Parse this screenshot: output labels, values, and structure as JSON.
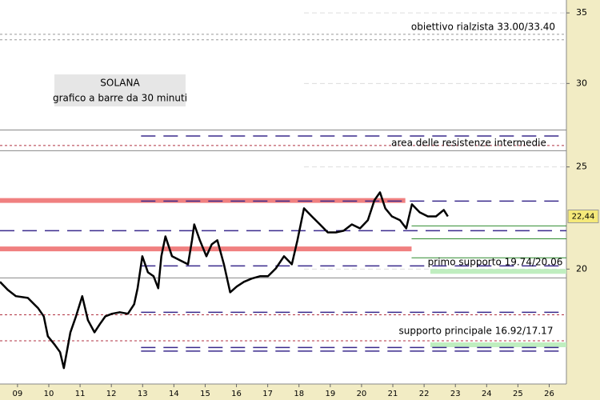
{
  "chart_data": {
    "type": "line",
    "title": "SOLANA",
    "subtitle": "grafico a barre da 30 minuti",
    "log_scale": true,
    "grid": true,
    "color": "#000000",
    "xlim": [
      8.44,
      26.55
    ],
    "xticks": [
      {
        "value": 9,
        "label": "09"
      },
      10,
      11,
      12,
      13,
      14,
      15,
      16,
      17,
      18,
      19,
      20,
      21,
      22,
      23,
      24,
      25,
      26
    ],
    "ylim": [
      15.56,
      36
    ],
    "yticks": [
      20,
      25,
      30,
      35
    ],
    "x": [
      8.44,
      8.69,
      8.95,
      9.33,
      9.66,
      9.84,
      9.97,
      10.18,
      10.36,
      10.48,
      10.69,
      10.87,
      11.07,
      11.25,
      11.46,
      11.63,
      11.81,
      12.02,
      12.27,
      12.53,
      12.73,
      12.84,
      12.99,
      13.17,
      13.35,
      13.5,
      13.6,
      13.73,
      13.94,
      14.19,
      14.45,
      14.58,
      14.65,
      14.83,
      15.04,
      15.21,
      15.39,
      15.6,
      15.8,
      16.01,
      16.24,
      16.49,
      16.75,
      17.01,
      17.26,
      17.52,
      17.77,
      17.95,
      18.16,
      18.41,
      18.67,
      18.92,
      19.18,
      19.43,
      19.69,
      19.95,
      20.2,
      20.41,
      20.59,
      20.76,
      20.97,
      21.23,
      21.43,
      21.61,
      21.86,
      22.12,
      22.38,
      22.63,
      22.76
    ],
    "values": [
      19.45,
      19.11,
      18.85,
      18.78,
      18.36,
      18.04,
      17.27,
      16.97,
      16.68,
      16.11,
      17.42,
      18.04,
      18.85,
      17.89,
      17.42,
      17.73,
      18.04,
      18.14,
      18.2,
      18.14,
      18.52,
      19.18,
      20.57,
      19.86,
      19.69,
      19.18,
      20.57,
      21.48,
      20.57,
      20.39,
      20.21,
      21.3,
      22.05,
      21.3,
      20.57,
      21.11,
      21.3,
      20.21,
      19.01,
      19.25,
      19.45,
      19.59,
      19.69,
      19.69,
      20.03,
      20.57,
      20.21,
      21.3,
      22.84,
      22.44,
      22.05,
      21.67,
      21.67,
      21.75,
      22.05,
      21.86,
      22.25,
      23.24,
      23.65,
      22.84,
      22.44,
      22.25,
      21.86,
      23.04,
      22.64,
      22.44,
      22.44,
      22.76,
      22.44
    ],
    "last_price": {
      "value": 22.44,
      "label": "22,44"
    },
    "levels": [
      {
        "value": 33.4,
        "color": "#999999",
        "style": "dotted"
      },
      {
        "value": 33.0,
        "color": "#999999",
        "style": "dotted"
      },
      {
        "value": 27.1,
        "color": "#888888",
        "style": "solid"
      },
      {
        "value": 26.75,
        "color": "#3a2a8c",
        "style": "dashed",
        "from": 12.95
      },
      {
        "value": 26.2,
        "color": "#b03040",
        "style": "dotted"
      },
      {
        "value": 25.9,
        "color": "#888888",
        "style": "solid"
      },
      {
        "value": 23.23,
        "color": "#f08080",
        "style": "band",
        "to": 21.4
      },
      {
        "value": 23.2,
        "color": "#3a2a8c",
        "style": "dashed",
        "from": 12.95
      },
      {
        "value": 21.98,
        "color": "#2e8b2e",
        "style": "solid",
        "from": 21.6
      },
      {
        "value": 21.75,
        "color": "#3a2a8c",
        "style": "dashed"
      },
      {
        "value": 21.37,
        "color": "#2e8b2e",
        "style": "solid",
        "from": 21.6
      },
      {
        "value": 20.9,
        "color": "#f08080",
        "style": "band",
        "to": 21.6
      },
      {
        "value": 20.5,
        "color": "#2e8b2e",
        "style": "solid",
        "from": 21.6
      },
      {
        "value": 20.14,
        "color": "#3a2a8c",
        "style": "dashed",
        "from": 12.95
      },
      {
        "value": 19.9,
        "color": "#bfeebf",
        "style": "band",
        "from": 22.2
      },
      {
        "value": 19.62,
        "color": "#888888",
        "style": "solid"
      },
      {
        "value": 18.2,
        "color": "#3a2a8c",
        "style": "dashed",
        "from": 12.95
      },
      {
        "value": 18.1,
        "color": "#b03040",
        "style": "dotted"
      },
      {
        "value": 17.1,
        "color": "#b03040",
        "style": "dotted"
      },
      {
        "value": 16.95,
        "color": "#bfeebf",
        "style": "band",
        "from": 22.2
      },
      {
        "value": 16.85,
        "color": "#3a2a8c",
        "style": "dashed",
        "from": 12.95
      },
      {
        "value": 16.72,
        "color": "#3a2a8c",
        "style": "dashed",
        "from": 12.95
      }
    ],
    "annotations": [
      "obiettivo rialzista 33.00/33.40",
      "area delle resistenze intermedie",
      "primo supporto 19.74/20.06",
      "supporto principale 16.92/17.17"
    ]
  }
}
